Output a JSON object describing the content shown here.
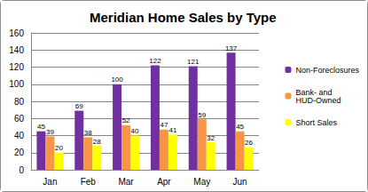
{
  "chart_data": {
    "type": "bar",
    "title": "Meridian Home Sales by Type",
    "categories": [
      "Jan",
      "Feb",
      "Mar",
      "Apr",
      "May",
      "Jun"
    ],
    "series": [
      {
        "name": "Non-Foreclosures",
        "color": "#7030a0",
        "values": [
          45,
          69,
          100,
          122,
          121,
          137
        ]
      },
      {
        "name": "Bank- and HUD-Owned",
        "color": "#f79646",
        "values": [
          39,
          38,
          52,
          47,
          59,
          45
        ]
      },
      {
        "name": "Short Sales",
        "color": "#ffff00",
        "values": [
          20,
          28,
          40,
          41,
          32,
          26
        ]
      }
    ],
    "ylim": [
      0,
      160
    ],
    "yticks": [
      0,
      20,
      40,
      60,
      80,
      100,
      120,
      140,
      160
    ],
    "grid": true,
    "legend": "right",
    "data_labels": true
  }
}
